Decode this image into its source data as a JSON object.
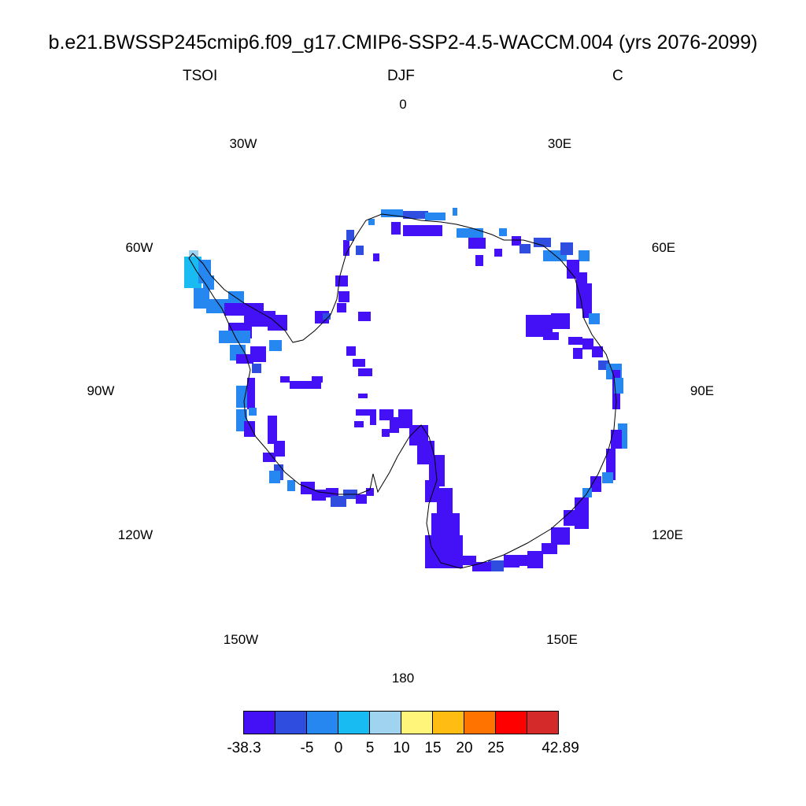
{
  "title": "b.e21.BWSSP245cmip6.f09_g17.CMIP6-SSP2-4.5-WACCM.004 (yrs 2076-2099)",
  "left_string": "TSOI",
  "center_string": "DJF",
  "right_string": "C",
  "lon_labels": [
    "0",
    "30E",
    "60E",
    "90E",
    "120E",
    "150E",
    "180",
    "150W",
    "120W",
    "90W",
    "60W",
    "30W"
  ],
  "colorbar": {
    "colors": [
      "#4410f5",
      "#2f4ee0",
      "#2687f0",
      "#18bcf2",
      "#9fd3ef",
      "#fff57a",
      "#ffbd14",
      "#ff7400",
      "#ff0000",
      "#d52a2a"
    ],
    "labels": [
      "-38.3",
      "-5",
      "0",
      "5",
      "10",
      "15",
      "20",
      "25",
      "42.89"
    ]
  }
}
